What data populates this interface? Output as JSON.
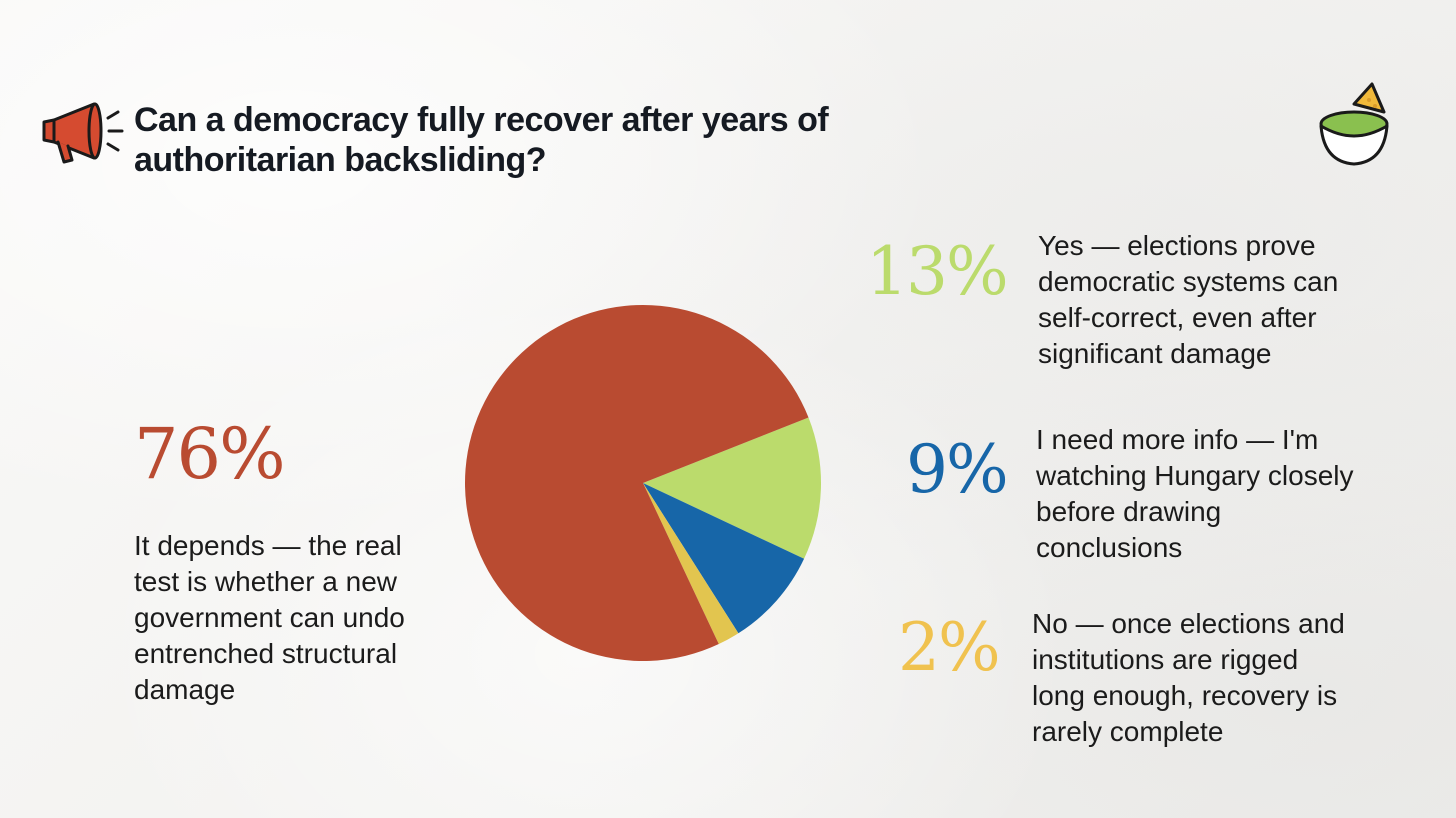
{
  "title": "Can a democracy fully recover after years of authoritarian backsliding?",
  "icons": {
    "left": "megaphone-icon",
    "right": "guacamole-bowl-icon"
  },
  "colors": {
    "red": "#b94b31",
    "green": "#bbdb6c",
    "blue": "#1766a8",
    "yellow": "#e2c54f",
    "ink": "#151a22"
  },
  "chart_data": {
    "type": "pie",
    "title": "Can a democracy fully recover after years of authoritarian backsliding?",
    "categories": [
      "It depends — the real test is whether a new government can undo entrenched structural damage",
      "Yes — elections prove democratic systems can self-correct, even after significant damage",
      "I need more info — I'm watching Hungary closely before drawing conclusions",
      "No — once elections and institutions are rigged long enough, recovery is rarely complete"
    ],
    "values": [
      76,
      13,
      9,
      2
    ],
    "labels": [
      "76%",
      "13%",
      "9%",
      "2%"
    ],
    "slice_colors": [
      "#b94b31",
      "#bbdb6c",
      "#1766a8",
      "#e2c54f"
    ],
    "label_colors": [
      "#b94b31",
      "#bbdb6c",
      "#1766a8",
      "#f0c24f"
    ]
  },
  "annotations": {
    "pct_76": "76%",
    "desc_76": "It depends — the real test is whether a new government can undo entrenched structural damage",
    "pct_13": "13%",
    "desc_13": "Yes — elections prove democratic systems can self-correct, even after significant damage",
    "pct_9": "9%",
    "desc_9": "I need more info — I'm watching Hungary closely before drawing conclusions",
    "pct_2": "2%",
    "desc_2": "No — once elections and institutions are rigged long enough, recovery is rarely complete"
  }
}
